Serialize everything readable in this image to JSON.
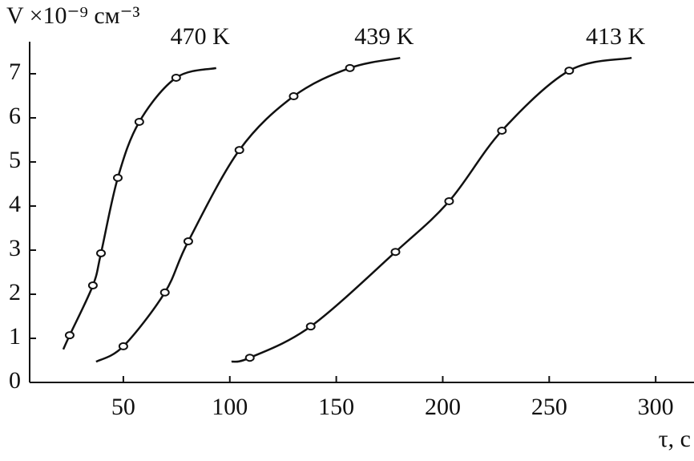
{
  "chart_data": {
    "type": "line",
    "y_label": "V ×10⁻⁹ см⁻³",
    "x_label": "τ, с",
    "series": [
      {
        "name": "470 K",
        "color": "#111111",
        "x": [
          21.8,
          24.8,
          35.7,
          39.5,
          47.4,
          57.5,
          74.8,
          93.6
        ],
        "values": [
          0.75,
          1.07,
          2.2,
          2.93,
          4.64,
          5.91,
          6.91,
          7.13
        ]
      },
      {
        "name": "439 K",
        "color": "#111111",
        "x": [
          37.2,
          50,
          69.5,
          80.5,
          104.5,
          130,
          156.4,
          180
        ],
        "values": [
          0.47,
          0.82,
          2.04,
          3.2,
          5.27,
          6.49,
          7.13,
          7.36
        ]
      },
      {
        "name": "413 K",
        "color": "#111111",
        "x": [
          100.8,
          109.4,
          138,
          177.8,
          203,
          227.8,
          259.4,
          288.7
        ],
        "values": [
          0.47,
          0.56,
          1.27,
          2.96,
          4.11,
          5.71,
          7.07,
          7.36
        ]
      }
    ],
    "xlim": [
      6,
      318
    ],
    "xticks": [
      50,
      100,
      150,
      200,
      250,
      300
    ],
    "ylim": [
      0,
      7.7
    ],
    "yticks": [
      0,
      1,
      2,
      3,
      4,
      5,
      6,
      7
    ],
    "grid": false
  }
}
